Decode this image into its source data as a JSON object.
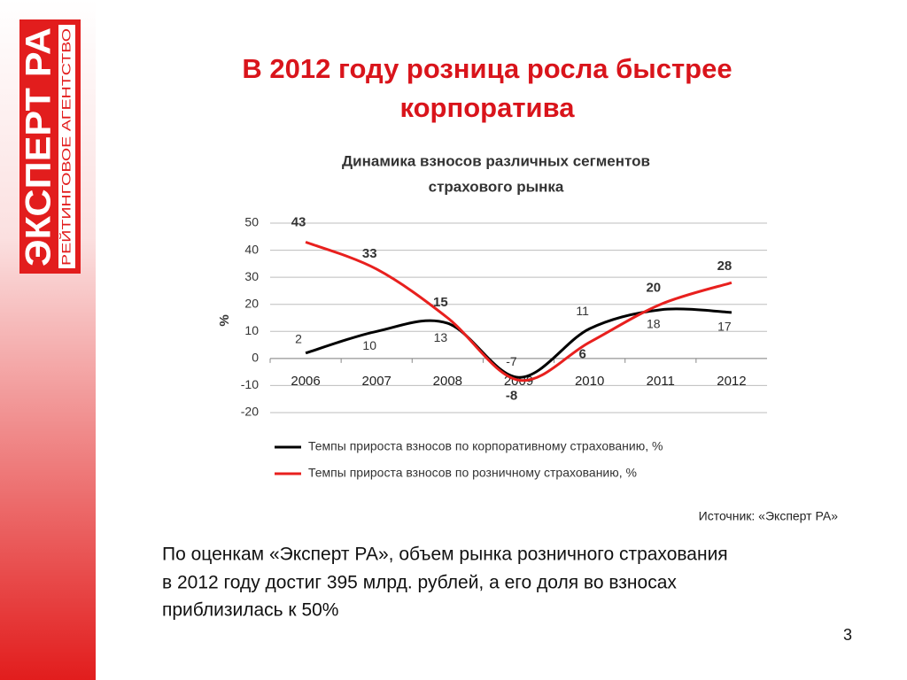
{
  "logo": {
    "name": "ЭКСПЕРТ РА",
    "tagline": "РЕЙТИНГОВОЕ АГЕНТСТВО"
  },
  "slide": {
    "title": [
      "В 2012 году розница росла быстрее",
      "корпоратива"
    ],
    "source": "Источник: «Эксперт РА»",
    "body": [
      "По оценкам «Эксперт РА», объем рынка розничного страхования",
      "в 2012 году достиг 395 млрд. рублей, а его доля во взносах",
      "приблизилась к 50%"
    ],
    "page_number": "3"
  },
  "chart_data": {
    "type": "line",
    "title": [
      "Динамика взносов различных сегментов",
      "страхового рынка"
    ],
    "ylabel": "%",
    "categories": [
      "2006",
      "2007",
      "2008",
      "2009",
      "2010",
      "2011",
      "2012"
    ],
    "series": [
      {
        "name": "Темпы прироста взносов по корпоративному страхованию, %",
        "color": "#000000",
        "values": [
          2,
          10,
          13,
          -7,
          11,
          18,
          17
        ]
      },
      {
        "name": "Темпы прироста взносов по розничному страхованию, %",
        "color": "#e8201e",
        "values": [
          43,
          33,
          15,
          -8,
          6,
          20,
          28
        ]
      }
    ],
    "ylim": [
      -20,
      50
    ],
    "yticks": [
      -20,
      -10,
      0,
      10,
      20,
      30,
      40,
      50
    ],
    "grid": true,
    "smooth": true,
    "legend": "bottom"
  }
}
